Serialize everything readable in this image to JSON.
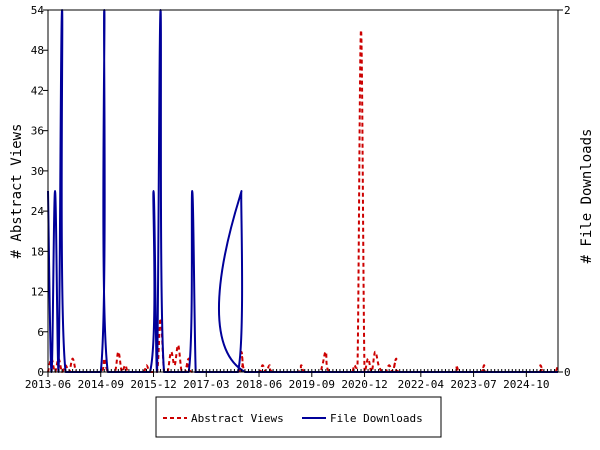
{
  "chart_data": {
    "type": "line",
    "title": "",
    "ylabel_left": "# Abstract Views",
    "ylabel_right": "# File Downloads",
    "ylim_left": [
      0,
      54
    ],
    "ylim_right": [
      0,
      2
    ],
    "yticks_left": [
      "0",
      "6",
      "12",
      "18",
      "24",
      "30",
      "36",
      "42",
      "48",
      "54"
    ],
    "yticks_right": [
      "0",
      "2"
    ],
    "xlim": [
      "2013-06",
      "2025-07"
    ],
    "xticks": [
      "2013-06",
      "2014-09",
      "2015-12",
      "2017-03",
      "2018-06",
      "2019-09",
      "2020-12",
      "2022-04",
      "2023-07",
      "2024-10"
    ],
    "grid": false,
    "legend_position": "bottom-center",
    "series": [
      {
        "name": "Abstract Views",
        "axis": "left",
        "color": "#cc0000",
        "style": "dashed",
        "points": [
          [
            "2013-06",
            0
          ],
          [
            "2013-07",
            2
          ],
          [
            "2013-08",
            0
          ],
          [
            "2013-09",
            2
          ],
          [
            "2013-10",
            0
          ],
          [
            "2013-11",
            1
          ],
          [
            "2013-12",
            0
          ],
          [
            "2014-01",
            2
          ],
          [
            "2014-02",
            0
          ],
          [
            "2014-03",
            0
          ],
          [
            "2014-09",
            0
          ],
          [
            "2014-10",
            2
          ],
          [
            "2014-11",
            0
          ],
          [
            "2015-01",
            0
          ],
          [
            "2015-02",
            3
          ],
          [
            "2015-03",
            0
          ],
          [
            "2015-04",
            1
          ],
          [
            "2015-05",
            0
          ],
          [
            "2015-09",
            0
          ],
          [
            "2015-10",
            1
          ],
          [
            "2015-11",
            0
          ],
          [
            "2016-01",
            0
          ],
          [
            "2016-02",
            8
          ],
          [
            "2016-03",
            0
          ],
          [
            "2016-04",
            0
          ],
          [
            "2016-05",
            3
          ],
          [
            "2016-06",
            1
          ],
          [
            "2016-07",
            4
          ],
          [
            "2016-08",
            0
          ],
          [
            "2016-09",
            0
          ],
          [
            "2016-10",
            2
          ],
          [
            "2016-11",
            0
          ],
          [
            "2017-12",
            0
          ],
          [
            "2018-01",
            3
          ],
          [
            "2018-02",
            0
          ],
          [
            "2018-06",
            0
          ],
          [
            "2018-07",
            1
          ],
          [
            "2018-08",
            0
          ],
          [
            "2018-09",
            1
          ],
          [
            "2018-10",
            0
          ],
          [
            "2019-05",
            0
          ],
          [
            "2019-06",
            1
          ],
          [
            "2019-07",
            0
          ],
          [
            "2019-11",
            0
          ],
          [
            "2019-12",
            1
          ],
          [
            "2020-01",
            3
          ],
          [
            "2020-02",
            0
          ],
          [
            "2020-08",
            0
          ],
          [
            "2020-09",
            1
          ],
          [
            "2020-10",
            1
          ],
          [
            "2020-11",
            51
          ],
          [
            "2020-12",
            0
          ],
          [
            "2021-01",
            2
          ],
          [
            "2021-02",
            0
          ],
          [
            "2021-03",
            3
          ],
          [
            "2021-04",
            1
          ],
          [
            "2021-05",
            0
          ],
          [
            "2021-06",
            0
          ],
          [
            "2021-07",
            1
          ],
          [
            "2021-08",
            0
          ],
          [
            "2021-09",
            2
          ],
          [
            "2021-10",
            0
          ],
          [
            "2023-01",
            0
          ],
          [
            "2023-02",
            1
          ],
          [
            "2023-03",
            0
          ],
          [
            "2023-09",
            0
          ],
          [
            "2023-10",
            1
          ],
          [
            "2023-11",
            0
          ],
          [
            "2025-01",
            0
          ],
          [
            "2025-02",
            1
          ],
          [
            "2025-03",
            0
          ],
          [
            "2025-06",
            0
          ],
          [
            "2025-07",
            1
          ]
        ]
      },
      {
        "name": "File Downloads",
        "axis": "right",
        "color": "#000099",
        "style": "solid",
        "points": [
          [
            "2013-06",
            1
          ],
          [
            "2013-07",
            0
          ],
          [
            "2013-08",
            1
          ],
          [
            "2013-09",
            0
          ],
          [
            "2013-10",
            2
          ],
          [
            "2013-11",
            0
          ],
          [
            "2014-09",
            0
          ],
          [
            "2014-10",
            2
          ],
          [
            "2014-11",
            0
          ],
          [
            "2015-11",
            0
          ],
          [
            "2015-12",
            1
          ],
          [
            "2016-01",
            0
          ],
          [
            "2016-02",
            2
          ],
          [
            "2016-03",
            0
          ],
          [
            "2016-10",
            0
          ],
          [
            "2016-11",
            1
          ],
          [
            "2016-12",
            0
          ],
          [
            "2017-01",
            0
          ],
          [
            "2017-12",
            0
          ],
          [
            "2018-01",
            1
          ],
          [
            "2018-02",
            0
          ],
          [
            "2025-07",
            0
          ]
        ]
      }
    ]
  }
}
